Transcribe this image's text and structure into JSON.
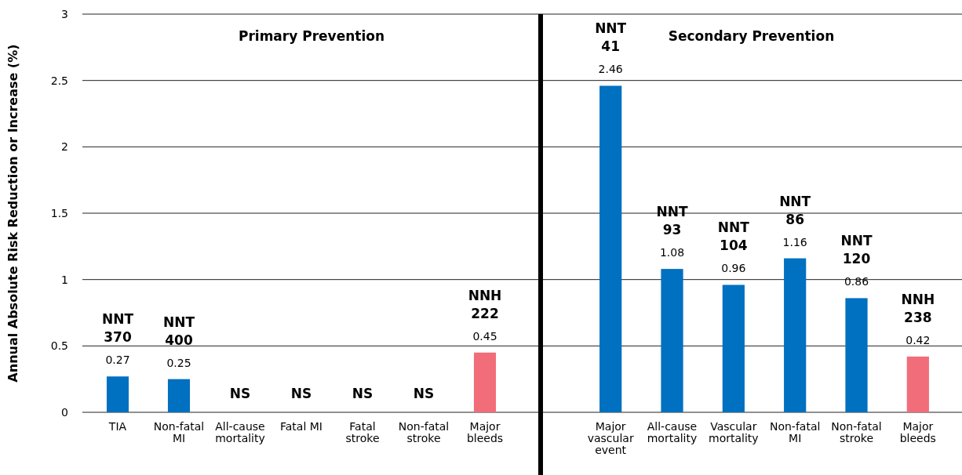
{
  "chart_data": [
    {
      "type": "bar",
      "title": "Primary Prevention",
      "ylabel": "Annual Absolute Risk Reduction or Increase (%)",
      "categories": [
        "TIA",
        "Non-fatal MI",
        "All-cause mortality",
        "Fatal MI",
        "Fatal stroke",
        "Non-fatal stroke",
        "Major bleeds"
      ],
      "values": [
        0.27,
        0.25,
        null,
        null,
        null,
        null,
        0.45
      ],
      "colors": [
        "#0070c0",
        "#0070c0",
        null,
        null,
        null,
        null,
        "#f26d7a"
      ],
      "value_labels": [
        "0.27",
        "0.25",
        "NS",
        "NS",
        "NS",
        "NS",
        "0.45"
      ],
      "annotations": [
        {
          "text": "NNT 370",
          "x": "TIA",
          "y": 0.27
        },
        {
          "text": "NNT 400",
          "x": "Non-fatal MI",
          "y": 0.25
        },
        {
          "text": "NNH 222",
          "x": "Major bleeds",
          "y": 0.45
        }
      ],
      "ylim": [
        0,
        3
      ],
      "yticks": [
        0,
        0.5,
        1,
        1.5,
        2,
        2.5,
        3
      ],
      "grid": "y"
    },
    {
      "type": "bar",
      "title": "Secondary Prevention",
      "categories": [
        "Major vascular event",
        "All-cause mortality",
        "Vascular mortality",
        "Non-fatal MI",
        "Non-fatal stroke",
        "Major bleeds"
      ],
      "values": [
        2.46,
        1.08,
        0.96,
        1.16,
        0.86,
        0.42
      ],
      "colors": [
        "#0070c0",
        "#0070c0",
        "#0070c0",
        "#0070c0",
        "#0070c0",
        "#f26d7a"
      ],
      "data_labels": true,
      "annotations": [
        {
          "text": "NNT 41",
          "x": "Major vascular event",
          "y": 2.46
        },
        {
          "text": "NNT 93",
          "x": "All-cause mortality",
          "y": 1.08
        },
        {
          "text": "NNT 104",
          "x": "Vascular mortality",
          "y": 0.96
        },
        {
          "text": "NNT 86",
          "x": "Non-fatal MI",
          "y": 1.16
        },
        {
          "text": "NNT 120",
          "x": "Non-fatal stroke",
          "y": 0.86
        },
        {
          "text": "NNH 238",
          "x": "Major bleeds",
          "y": 0.42
        }
      ],
      "ylim": [
        0,
        3
      ],
      "yticks": [
        0,
        0.5,
        1,
        1.5,
        2,
        2.5,
        3
      ],
      "grid": "y",
      "tick_labels": "x"
    }
  ]
}
